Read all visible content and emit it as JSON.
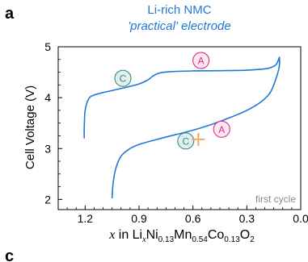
{
  "panel_labels": {
    "top": "a",
    "next": "c"
  },
  "chart_data": {
    "type": "line",
    "title": "Li-rich NMC",
    "subtitle": "'practical' electrode",
    "ylabel": "Cell Voltage (V)",
    "xlabel_parts": {
      "var": "x",
      "in": " in Li",
      "sub_x": "x",
      "ni": "Ni",
      "sub_ni": "0.13",
      "mn": "Mn",
      "sub_mn": "0.54",
      "co": "Co",
      "sub_co": "0.13",
      "o": "O",
      "sub_o": "2"
    },
    "xlim": [
      1.35,
      0.0
    ],
    "ylim": [
      1.8,
      5.0
    ],
    "x_reversed": true,
    "x_ticks": [
      1.2,
      0.9,
      0.6,
      0.3,
      0.0
    ],
    "x_tick_labels": [
      "1.2",
      "0.9",
      "0.6",
      "0.3",
      "0.0"
    ],
    "y_ticks": [
      2,
      3,
      4,
      5
    ],
    "y_tick_labels": [
      "2",
      "3",
      "4",
      "5"
    ],
    "grid": false,
    "series": [
      {
        "kind": "charge",
        "color": "#1e78d6",
        "points": [
          [
            1.05,
            2.02
          ],
          [
            1.045,
            2.3
          ],
          [
            1.03,
            2.6
          ],
          [
            1.0,
            2.85
          ],
          [
            0.95,
            3.0
          ],
          [
            0.9,
            3.08
          ],
          [
            0.8,
            3.18
          ],
          [
            0.7,
            3.27
          ],
          [
            0.6,
            3.36
          ],
          [
            0.5,
            3.47
          ],
          [
            0.4,
            3.6
          ],
          [
            0.3,
            3.75
          ],
          [
            0.22,
            3.92
          ],
          [
            0.17,
            4.1
          ],
          [
            0.14,
            4.35
          ],
          [
            0.12,
            4.6
          ],
          [
            0.118,
            4.8
          ]
        ]
      },
      {
        "kind": "discharge",
        "color": "#1e78d6",
        "points": [
          [
            0.118,
            4.8
          ],
          [
            0.135,
            4.66
          ],
          [
            0.16,
            4.6
          ],
          [
            0.2,
            4.565
          ],
          [
            0.3,
            4.54
          ],
          [
            0.45,
            4.53
          ],
          [
            0.6,
            4.525
          ],
          [
            0.7,
            4.515
          ],
          [
            0.78,
            4.49
          ],
          [
            0.82,
            4.43
          ],
          [
            0.85,
            4.35
          ],
          [
            0.9,
            4.27
          ],
          [
            1.0,
            4.18
          ],
          [
            1.1,
            4.1
          ],
          [
            1.15,
            4.05
          ],
          [
            1.18,
            3.98
          ],
          [
            1.2,
            3.75
          ],
          [
            1.205,
            3.4
          ],
          [
            1.205,
            3.2
          ]
        ]
      }
    ],
    "annotations": [
      {
        "label": "A",
        "x": 0.555,
        "y": 4.73,
        "color": "#e0288a",
        "fill": "#fdeaf3"
      },
      {
        "label": "C",
        "x": 0.99,
        "y": 4.38,
        "color": "#3d8a8a",
        "fill": "#dff0ed"
      },
      {
        "label": "A",
        "x": 0.44,
        "y": 3.38,
        "color": "#e0288a",
        "fill": "#fdeaf3"
      },
      {
        "label": "C",
        "x": 0.64,
        "y": 3.15,
        "color": "#3d8a8a",
        "fill": "#dff0ed"
      }
    ],
    "marker": {
      "symbol": "+",
      "x": 0.57,
      "y": 3.18,
      "color": "#f4a760"
    },
    "note": "first cycle"
  }
}
